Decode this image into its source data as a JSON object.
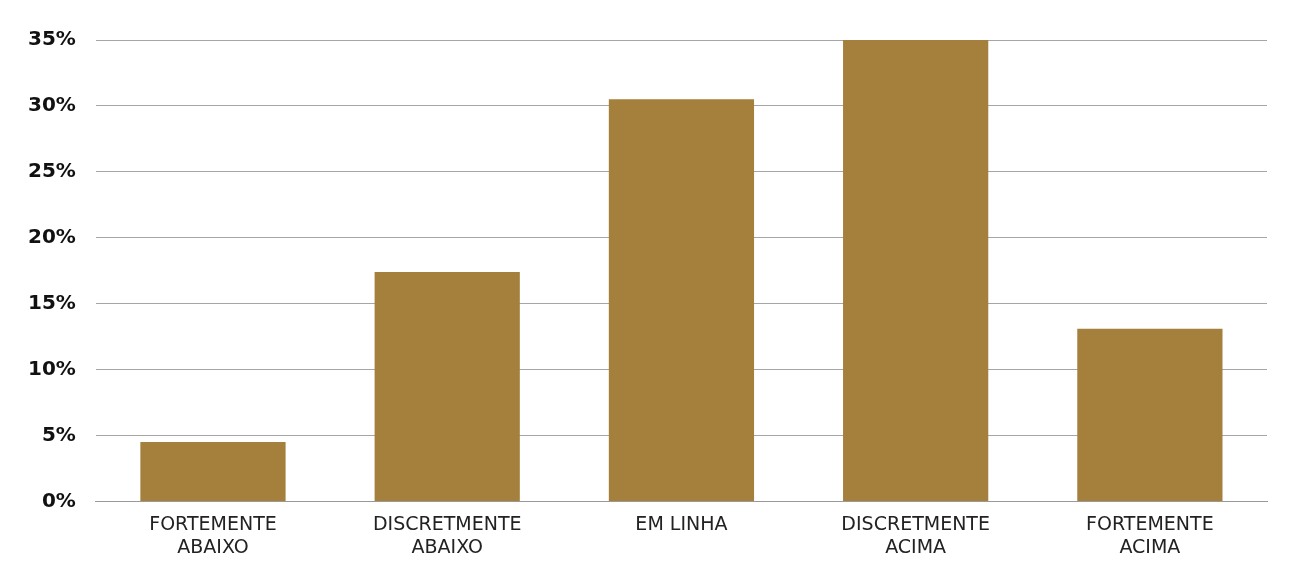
{
  "chart_data": {
    "type": "bar",
    "categories": [
      "FORTEMENTE ABAIXO",
      "DISCRETMENTE ABAIXO",
      "EM LINHA",
      "DISCRETMENTE ACIMA",
      "FORTEMENTE ACIMA"
    ],
    "values": [
      4.5,
      17.4,
      30.5,
      35,
      13.1
    ],
    "color": "#a57f3c",
    "ylim": [
      0,
      35
    ],
    "yticks": [
      {
        "value": 0,
        "label": "0%"
      },
      {
        "value": 5,
        "label": "5%"
      },
      {
        "value": 10,
        "label": "10%"
      },
      {
        "value": 15,
        "label": "15%"
      },
      {
        "value": 20,
        "label": "20%"
      },
      {
        "value": 25,
        "label": "25%"
      },
      {
        "value": 30,
        "label": "30%"
      },
      {
        "value": 35,
        "label": "35%"
      }
    ],
    "grid": "y"
  }
}
